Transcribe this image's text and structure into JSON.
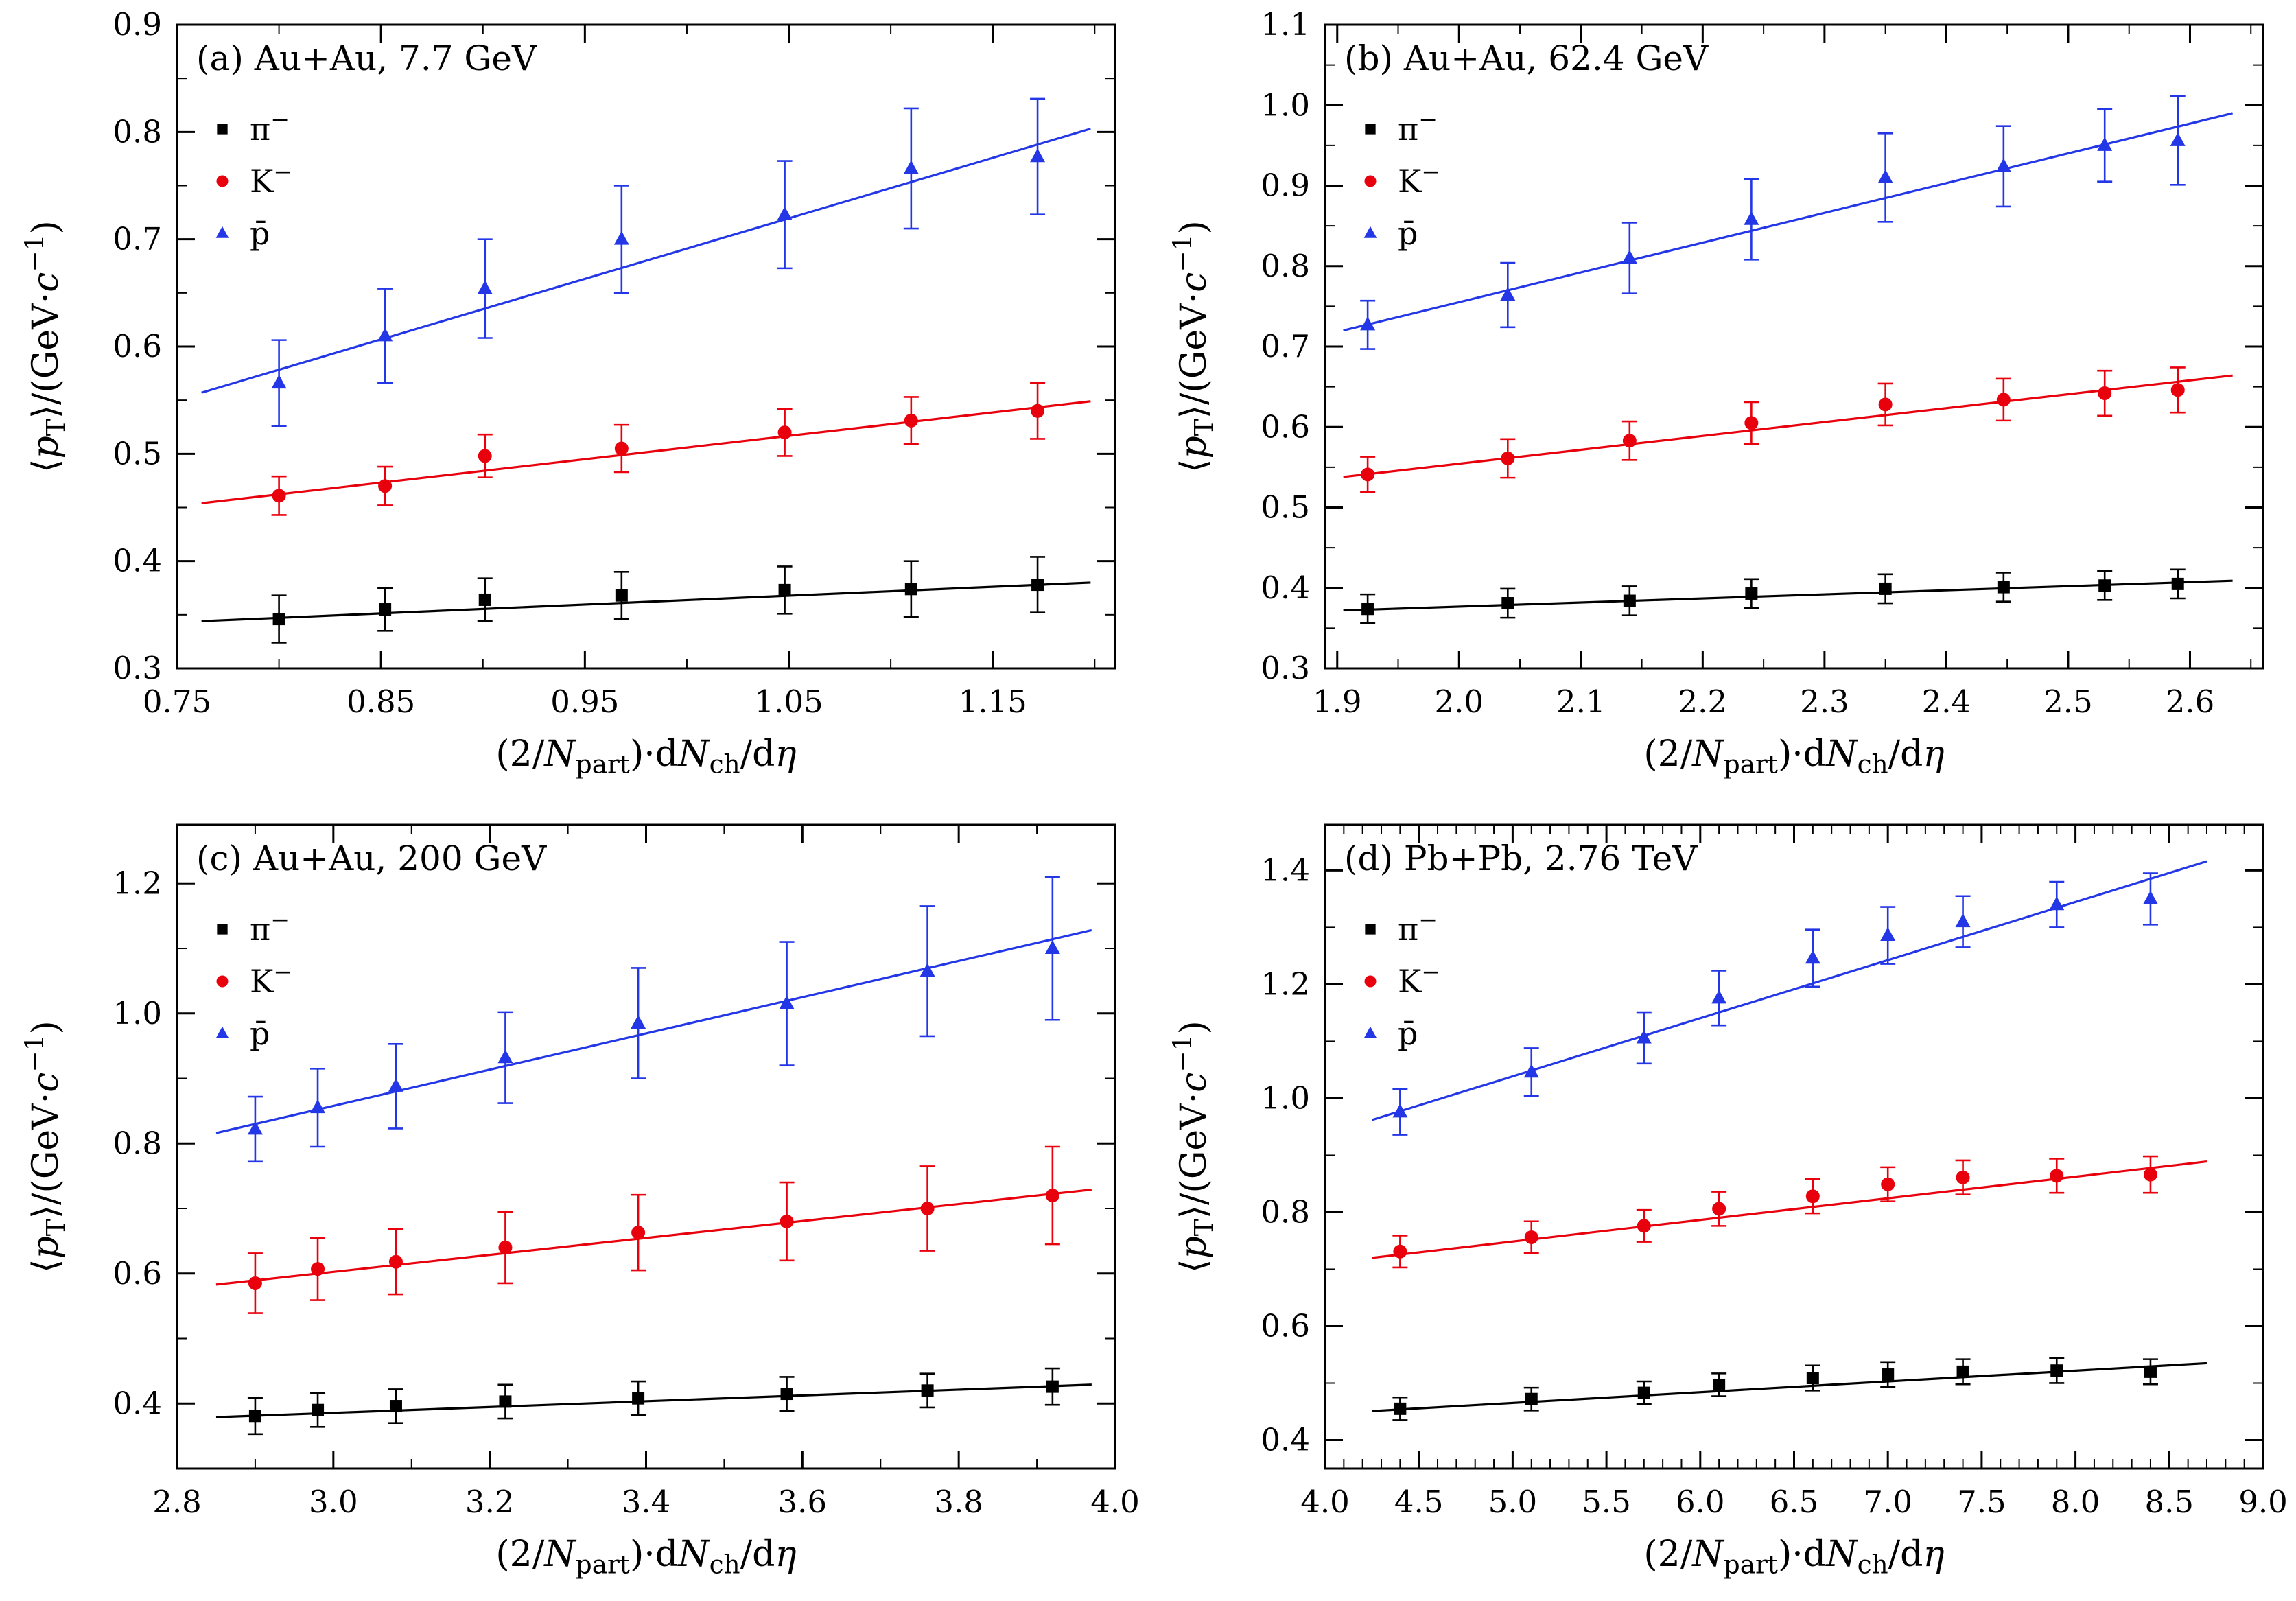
{
  "figure": {
    "background": "#ffffff"
  },
  "chart_data": [
    {
      "type": "scatter",
      "panel": "a",
      "title": "(a) Au+Au, 7.7 GeV",
      "xlabel": "(2/*N*_{part})·d*N*_{ch}/d*η*",
      "ylabel": "⟨*p*_{T}⟩/(GeV·*c*^{−1})",
      "xlim": [
        0.75,
        1.21
      ],
      "ylim": [
        0.3,
        0.9
      ],
      "xticks": {
        "values": [
          0.75,
          0.85,
          0.95,
          1.05,
          1.15
        ],
        "labels": [
          "0.75",
          "0.85",
          "0.95",
          "1.05",
          "1.15"
        ],
        "minor_step": 0.05
      },
      "yticks": {
        "values": [
          0.3,
          0.4,
          0.5,
          0.6,
          0.7,
          0.8,
          0.9
        ],
        "labels": [
          "0.3",
          "0.4",
          "0.5",
          "0.6",
          "0.7",
          "0.8",
          "0.9"
        ],
        "minor_step": 0.05
      },
      "legend_position": "upper-left",
      "grid": false,
      "x": [
        0.8,
        0.852,
        0.901,
        0.968,
        1.048,
        1.11,
        1.172
      ],
      "series": [
        {
          "name": "π^{−}",
          "particle": "pi-minus",
          "marker": "square",
          "color": "#000000",
          "y": [
            0.346,
            0.355,
            0.364,
            0.368,
            0.373,
            0.374,
            0.378
          ],
          "yerr": [
            0.022,
            0.02,
            0.02,
            0.022,
            0.022,
            0.026,
            0.026
          ],
          "fit_x": [
            0.762,
            1.198
          ],
          "fit_y": [
            0.344,
            0.38
          ]
        },
        {
          "name": "K^{−}",
          "particle": "K-minus",
          "marker": "circle",
          "color": "#e8000d",
          "y": [
            0.461,
            0.47,
            0.498,
            0.505,
            0.52,
            0.531,
            0.54
          ],
          "yerr": [
            0.018,
            0.018,
            0.02,
            0.022,
            0.022,
            0.022,
            0.026
          ],
          "fit_x": [
            0.762,
            1.198
          ],
          "fit_y": [
            0.454,
            0.549
          ]
        },
        {
          "name": "p̄",
          "particle": "pbar",
          "marker": "triangle",
          "color": "#2337e6",
          "y": [
            0.566,
            0.61,
            0.654,
            0.7,
            0.723,
            0.766,
            0.777
          ],
          "yerr": [
            0.04,
            0.044,
            0.046,
            0.05,
            0.05,
            0.056,
            0.054
          ],
          "fit_x": [
            0.762,
            1.198
          ],
          "fit_y": [
            0.557,
            0.803
          ]
        }
      ]
    },
    {
      "type": "scatter",
      "panel": "b",
      "title": "(b) Au+Au, 62.4 GeV",
      "xlabel": "(2/*N*_{part})·d*N*_{ch}/d*η*",
      "ylabel": "⟨*p*_{T}⟩/(GeV·*c*^{−1})",
      "xlim": [
        1.89,
        2.66
      ],
      "ylim": [
        0.3,
        1.1
      ],
      "xticks": {
        "values": [
          1.9,
          2.0,
          2.1,
          2.2,
          2.3,
          2.4,
          2.5,
          2.6
        ],
        "labels": [
          "1.9",
          "2.0",
          "2.1",
          "2.2",
          "2.3",
          "2.4",
          "2.5",
          "2.6"
        ],
        "minor_step": 0.05
      },
      "yticks": {
        "values": [
          0.3,
          0.4,
          0.5,
          0.6,
          0.7,
          0.8,
          0.9,
          1.0,
          1.1
        ],
        "labels": [
          "0.3",
          "0.4",
          "0.5",
          "0.6",
          "0.7",
          "0.8",
          "0.9",
          "1.0",
          "1.1"
        ],
        "minor_step": 0.05
      },
      "legend_position": "upper-left",
      "grid": false,
      "x": [
        1.925,
        2.04,
        2.14,
        2.24,
        2.35,
        2.447,
        2.53,
        2.59
      ],
      "series": [
        {
          "name": "π^{−}",
          "particle": "pi-minus",
          "marker": "square",
          "color": "#000000",
          "y": [
            0.374,
            0.381,
            0.384,
            0.393,
            0.399,
            0.401,
            0.403,
            0.405
          ],
          "yerr": [
            0.018,
            0.018,
            0.018,
            0.018,
            0.018,
            0.018,
            0.018,
            0.018
          ],
          "fit_x": [
            1.905,
            2.635
          ],
          "fit_y": [
            0.372,
            0.409
          ]
        },
        {
          "name": "K^{−}",
          "particle": "K-minus",
          "marker": "circle",
          "color": "#e8000d",
          "y": [
            0.541,
            0.561,
            0.583,
            0.605,
            0.628,
            0.634,
            0.642,
            0.646
          ],
          "yerr": [
            0.022,
            0.024,
            0.024,
            0.026,
            0.026,
            0.026,
            0.028,
            0.028
          ],
          "fit_x": [
            1.905,
            2.635
          ],
          "fit_y": [
            0.538,
            0.664
          ]
        },
        {
          "name": "p̄",
          "particle": "pbar",
          "marker": "triangle",
          "color": "#2337e6",
          "y": [
            0.727,
            0.764,
            0.81,
            0.858,
            0.91,
            0.924,
            0.95,
            0.956
          ],
          "yerr": [
            0.03,
            0.04,
            0.044,
            0.05,
            0.055,
            0.05,
            0.045,
            0.055
          ],
          "fit_x": [
            1.905,
            2.635
          ],
          "fit_y": [
            0.72,
            0.99
          ]
        }
      ]
    },
    {
      "type": "scatter",
      "panel": "c",
      "title": "(c) Au+Au, 200 GeV",
      "xlabel": "(2/*N*_{part})·d*N*_{ch}/d*η*",
      "ylabel": "⟨*p*_{T}⟩/(GeV·*c*^{−1})",
      "xlim": [
        2.8,
        4.0
      ],
      "ylim": [
        0.3,
        1.29
      ],
      "xticks": {
        "values": [
          2.8,
          3.0,
          3.2,
          3.4,
          3.6,
          3.8,
          4.0
        ],
        "labels": [
          "2.8",
          "3.0",
          "3.2",
          "3.4",
          "3.6",
          "3.8",
          "4.0"
        ],
        "minor_step": 0.1
      },
      "yticks": {
        "values": [
          0.4,
          0.6,
          0.8,
          1.0,
          1.2
        ],
        "labels": [
          "0.4",
          "0.6",
          "0.8",
          "1.0",
          "1.2"
        ],
        "minor_step": 0.1
      },
      "legend_position": "upper-left",
      "grid": false,
      "x": [
        2.9,
        2.98,
        3.08,
        3.22,
        3.39,
        3.58,
        3.76,
        3.92
      ],
      "series": [
        {
          "name": "π^{−}",
          "particle": "pi-minus",
          "marker": "square",
          "color": "#000000",
          "y": [
            0.381,
            0.39,
            0.396,
            0.403,
            0.408,
            0.415,
            0.42,
            0.426
          ],
          "yerr": [
            0.028,
            0.026,
            0.026,
            0.026,
            0.026,
            0.026,
            0.026,
            0.028
          ],
          "fit_x": [
            2.85,
            3.97
          ],
          "fit_y": [
            0.379,
            0.429
          ]
        },
        {
          "name": "K^{−}",
          "particle": "K-minus",
          "marker": "circle",
          "color": "#e8000d",
          "y": [
            0.585,
            0.607,
            0.618,
            0.64,
            0.663,
            0.68,
            0.7,
            0.72
          ],
          "yerr": [
            0.046,
            0.048,
            0.05,
            0.055,
            0.058,
            0.06,
            0.065,
            0.075
          ],
          "fit_x": [
            2.85,
            3.97
          ],
          "fit_y": [
            0.583,
            0.729
          ]
        },
        {
          "name": "p̄",
          "particle": "pbar",
          "marker": "triangle",
          "color": "#2337e6",
          "y": [
            0.822,
            0.855,
            0.888,
            0.932,
            0.985,
            1.015,
            1.065,
            1.1
          ],
          "yerr": [
            0.05,
            0.06,
            0.065,
            0.07,
            0.085,
            0.095,
            0.1,
            0.11
          ],
          "fit_x": [
            2.85,
            3.97
          ],
          "fit_y": [
            0.816,
            1.128
          ]
        }
      ]
    },
    {
      "type": "scatter",
      "panel": "d",
      "title": "(d) Pb+Pb, 2.76 TeV",
      "xlabel": "(2/*N*_{part})·d*N*_{ch}/d*η*",
      "ylabel": "⟨*p*_{T}⟩/(GeV·*c*^{−1})",
      "xlim": [
        4.0,
        9.0
      ],
      "ylim": [
        0.35,
        1.48
      ],
      "xticks": {
        "values": [
          4.0,
          4.5,
          5.0,
          5.5,
          6.0,
          6.5,
          7.0,
          7.5,
          8.0,
          8.5,
          9.0
        ],
        "labels": [
          "4.0",
          "4.5",
          "5.0",
          "5.5",
          "6.0",
          "6.5",
          "7.0",
          "7.5",
          "8.0",
          "8.5",
          "9.0"
        ],
        "minor_step": 0.1
      },
      "yticks": {
        "values": [
          0.4,
          0.6,
          0.8,
          1.0,
          1.2,
          1.4
        ],
        "labels": [
          "0.4",
          "0.6",
          "0.8",
          "1.0",
          "1.2",
          "1.4"
        ],
        "minor_step": 0.1
      },
      "legend_position": "upper-left",
      "grid": false,
      "x": [
        4.4,
        5.1,
        5.7,
        6.1,
        6.6,
        7.0,
        7.4,
        7.9,
        8.4
      ],
      "series": [
        {
          "name": "π^{−}",
          "particle": "pi-minus",
          "marker": "square",
          "color": "#000000",
          "y": [
            0.455,
            0.472,
            0.483,
            0.497,
            0.509,
            0.515,
            0.52,
            0.522,
            0.52
          ],
          "yerr": [
            0.02,
            0.02,
            0.02,
            0.02,
            0.022,
            0.022,
            0.022,
            0.022,
            0.022
          ],
          "fit_x": [
            4.25,
            8.7
          ],
          "fit_y": [
            0.451,
            0.535
          ]
        },
        {
          "name": "K^{−}",
          "particle": "K-minus",
          "marker": "circle",
          "color": "#e8000d",
          "y": [
            0.731,
            0.756,
            0.776,
            0.806,
            0.828,
            0.849,
            0.861,
            0.864,
            0.866
          ],
          "yerr": [
            0.028,
            0.028,
            0.028,
            0.03,
            0.03,
            0.03,
            0.03,
            0.03,
            0.032
          ],
          "fit_x": [
            4.25,
            8.7
          ],
          "fit_y": [
            0.72,
            0.889
          ]
        },
        {
          "name": "p̄",
          "particle": "pbar",
          "marker": "triangle",
          "color": "#2337e6",
          "y": [
            0.976,
            1.046,
            1.106,
            1.176,
            1.246,
            1.286,
            1.31,
            1.34,
            1.35
          ],
          "yerr": [
            0.04,
            0.042,
            0.045,
            0.048,
            0.05,
            0.05,
            0.045,
            0.04,
            0.045
          ],
          "fit_x": [
            4.25,
            8.7
          ],
          "fit_y": [
            0.962,
            1.416
          ]
        }
      ]
    }
  ]
}
